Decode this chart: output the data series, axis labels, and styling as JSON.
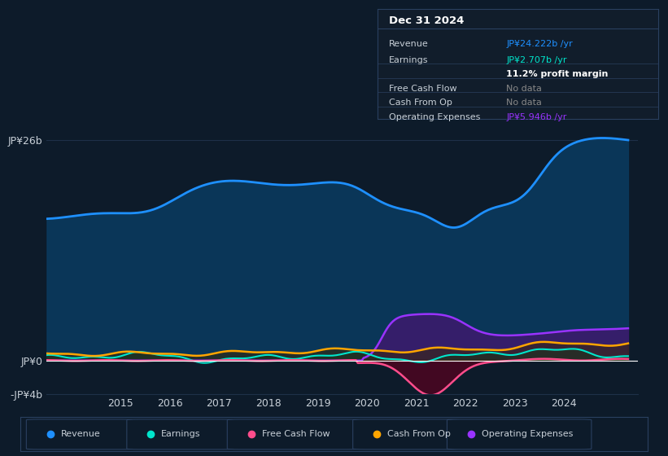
{
  "bg_color": "#0d1b2a",
  "plot_bg_color": "#0d1b2a",
  "grid_color": "#1e3048",
  "text_color": "#c8d0d8",
  "ylim": [
    -4000000000.0,
    28000000000.0
  ],
  "yticks_labels": [
    "JP¥26b",
    "JP¥0",
    "-JP¥4b"
  ],
  "yticks_values": [
    26000000000.0,
    0,
    -4000000000.0
  ],
  "xlim_start": 2013.5,
  "xlim_end": 2025.5,
  "xticks": [
    2015,
    2016,
    2017,
    2018,
    2019,
    2020,
    2021,
    2022,
    2023,
    2024
  ],
  "revenue_color": "#1e90ff",
  "revenue_fill_color": "#0a3a5e",
  "earnings_color": "#00e5cc",
  "earnings_fill_color": "#004040",
  "fcf_color": "#ff4d8c",
  "fcf_fill_color": "#5a0020",
  "cashfromop_color": "#ffa500",
  "cashfromop_fill_color": "#3a2800",
  "opex_color": "#9933ff",
  "opex_fill_color": "#3d1a6e",
  "info_title": "Dec 31 2024",
  "info_rows": [
    {
      "label": "Revenue",
      "value": "JP¥24.222b /yr",
      "value_color": "#1e90ff",
      "bold": false
    },
    {
      "label": "Earnings",
      "value": "JP¥2.707b /yr",
      "value_color": "#00e5cc",
      "bold": false
    },
    {
      "label": "",
      "value": "11.2% profit margin",
      "value_color": "#ffffff",
      "bold": true
    },
    {
      "label": "Free Cash Flow",
      "value": "No data",
      "value_color": "#888888",
      "bold": false
    },
    {
      "label": "Cash From Op",
      "value": "No data",
      "value_color": "#888888",
      "bold": false
    },
    {
      "label": "Operating Expenses",
      "value": "JP¥5.946b /yr",
      "value_color": "#9933ff",
      "bold": false
    }
  ],
  "legend": [
    {
      "label": "Revenue",
      "color": "#1e90ff"
    },
    {
      "label": "Earnings",
      "color": "#00e5cc"
    },
    {
      "label": "Free Cash Flow",
      "color": "#ff4d8c"
    },
    {
      "label": "Cash From Op",
      "color": "#ffa500"
    },
    {
      "label": "Operating Expenses",
      "color": "#9933ff"
    }
  ]
}
